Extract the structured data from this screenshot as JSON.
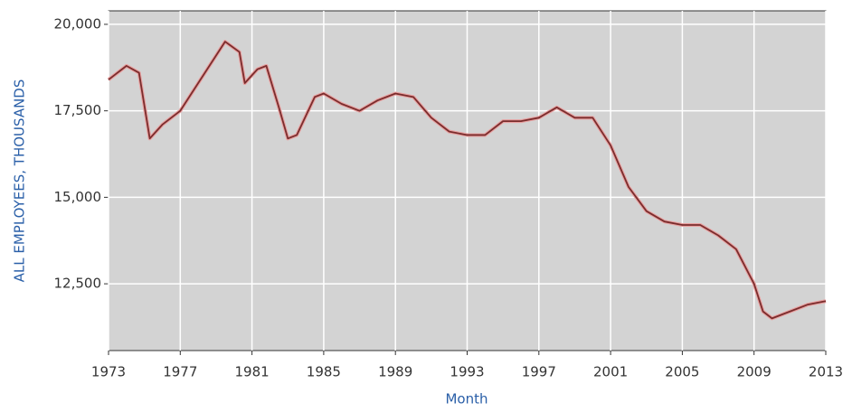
{
  "chart_data": {
    "type": "line",
    "x_label": "Month",
    "y_label": "ALL EMPLOYEES, THOUSANDS",
    "x": [
      1973,
      1974,
      1974.7,
      1975.3,
      1976,
      1977,
      1978,
      1979.5,
      1980.3,
      1980.6,
      1981.3,
      1981.8,
      1982.5,
      1983,
      1983.5,
      1984.5,
      1985,
      1986,
      1987,
      1988,
      1989,
      1990,
      1991,
      1992,
      1993,
      1994,
      1995,
      1996,
      1997,
      1998,
      1999,
      2000,
      2001,
      2002,
      2003,
      2004,
      2005,
      2006,
      2007,
      2008,
      2009,
      2009.5,
      2010,
      2011,
      2012,
      2013
    ],
    "series": [
      {
        "name": "All employees",
        "color": "#7a2d2d",
        "values": [
          18400,
          18800,
          18600,
          16700,
          17100,
          17500,
          18300,
          19500,
          19200,
          18300,
          18700,
          18800,
          17600,
          16700,
          16800,
          17900,
          18000,
          17700,
          17500,
          17800,
          18000,
          17900,
          17300,
          16900,
          16800,
          16800,
          17200,
          17200,
          17300,
          17600,
          17300,
          17300,
          16500,
          15300,
          14600,
          14300,
          14200,
          14200,
          13900,
          13500,
          12500,
          11700,
          11500,
          11700,
          11900,
          12000
        ]
      }
    ],
    "xlim": [
      1973,
      2013
    ],
    "xticks": [
      1973,
      1977,
      1981,
      1985,
      1989,
      1993,
      1997,
      2001,
      2005,
      2009,
      2013
    ],
    "ylim": [
      10570,
      20390
    ],
    "yticks": [
      {
        "value": 12500,
        "label": "12,500"
      },
      {
        "value": 15000,
        "label": "15,000"
      },
      {
        "value": 17500,
        "label": "17,500"
      },
      {
        "value": 20000,
        "label": "20,000"
      }
    ],
    "grid": true
  }
}
